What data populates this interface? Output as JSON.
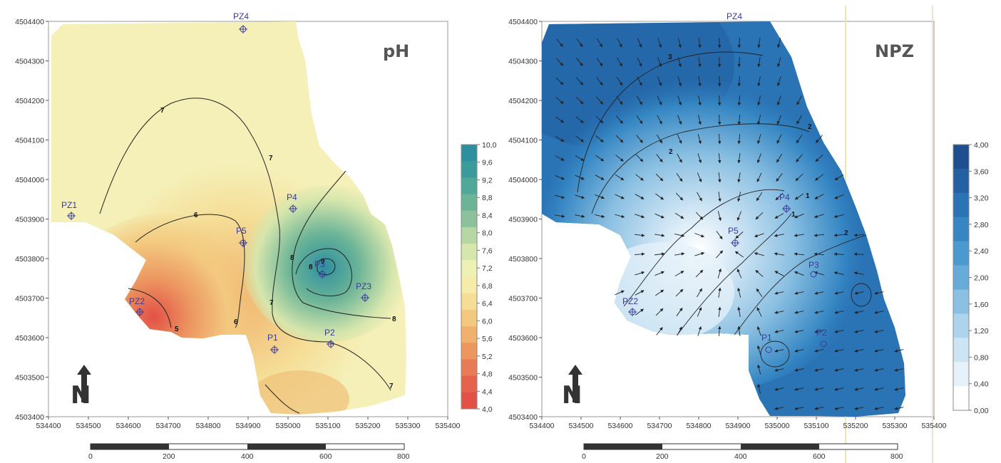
{
  "maps": [
    {
      "id": "ph",
      "title": "pH",
      "x_ticks": [
        "534400",
        "534500",
        "534600",
        "534700",
        "534800",
        "534900",
        "535000",
        "535100",
        "535200",
        "535300",
        "535400"
      ],
      "y_ticks": [
        "4504400",
        "4504300",
        "4504200",
        "4504100",
        "4504000",
        "4503900",
        "4503800",
        "4503700",
        "4503600",
        "4503500",
        "4503400"
      ],
      "legend_labels": [
        "10,0",
        "9,6",
        "9,2",
        "8,8",
        "8,4",
        "8,0",
        "7,6",
        "7,2",
        "6,8",
        "6,4",
        "6,0",
        "5,6",
        "5,2",
        "4,8",
        "4,4",
        "4,0"
      ],
      "legend_colors": [
        "#2e8f9e",
        "#3b9a9a",
        "#4fa898",
        "#6bb497",
        "#8cc29b",
        "#b6d6a3",
        "#d6e6ad",
        "#eef1b4",
        "#f5ecaa",
        "#f5dd96",
        "#f3c97f",
        "#f0b16c",
        "#ec9660",
        "#e87b55",
        "#e5624c",
        "#e25146"
      ],
      "contour_labels": [
        "7",
        "7",
        "8",
        "6",
        "6",
        "5",
        "7",
        "8",
        "9",
        "8",
        "7"
      ],
      "points": [
        "PZ4",
        "PZ1",
        "P4",
        "P5",
        "P3",
        "PZ3",
        "PZ2",
        "P1",
        "P2"
      ],
      "scale_labels": [
        "0",
        "200",
        "400",
        "600",
        "800"
      ]
    },
    {
      "id": "npz",
      "title": "NPZ",
      "x_ticks": [
        "534400",
        "534500",
        "534600",
        "534700",
        "534800",
        "534900",
        "535000",
        "535100",
        "535200",
        "535300",
        "535400"
      ],
      "y_ticks": [
        "4504400",
        "4504300",
        "4504200",
        "4504100",
        "4504000",
        "4503900",
        "4503800",
        "4503700",
        "4503600",
        "4503500",
        "4503400"
      ],
      "legend_labels": [
        "4,00",
        "3,60",
        "3,20",
        "2,80",
        "2,40",
        "2,00",
        "1,60",
        "1,20",
        "0,80",
        "0,40",
        "0,00"
      ],
      "legend_colors": [
        "#1f4f8f",
        "#2361a3",
        "#2a73b5",
        "#3586c3",
        "#4a99cf",
        "#67acd8",
        "#8bc0e2",
        "#aed3ec",
        "#cde4f4",
        "#e6f1f9",
        "#ffffff"
      ],
      "contour_labels": [
        "3",
        "2",
        "2",
        "1",
        "1",
        "2"
      ],
      "points": [
        "PZ4",
        "P4",
        "P5",
        "P3",
        "PZ2",
        "P2",
        "P1"
      ],
      "scale_labels": [
        "0",
        "200",
        "400",
        "600",
        "800"
      ]
    }
  ]
}
